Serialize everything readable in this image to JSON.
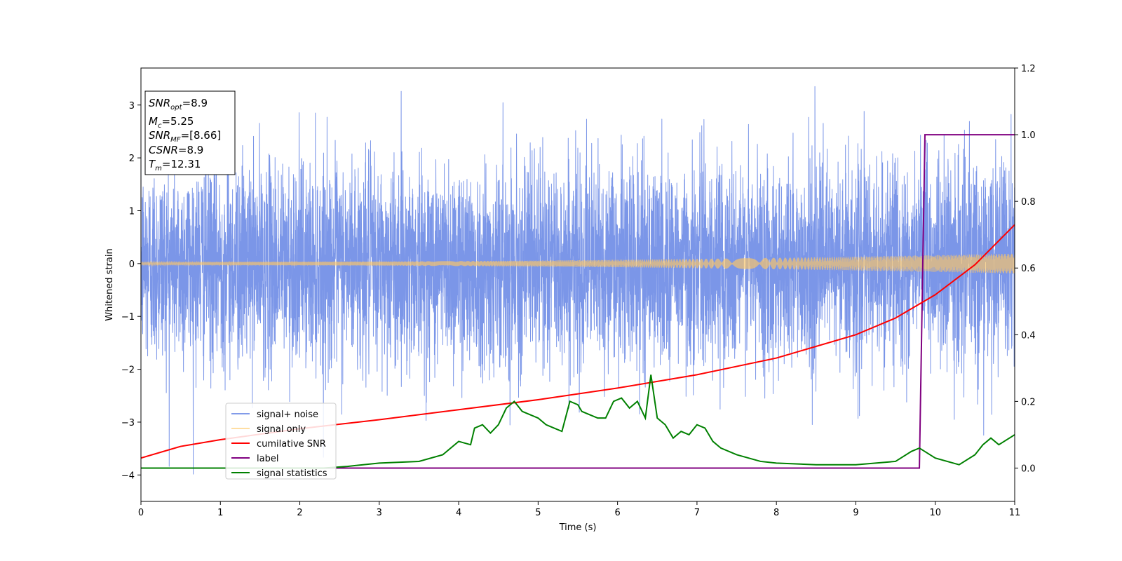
{
  "chart_data": {
    "type": "line",
    "xlabel": "Time (s)",
    "ylabel": "Whitened strain",
    "xlim": [
      0,
      11
    ],
    "ylim_left": [
      -4.5,
      3.7
    ],
    "ylim_right": [
      -0.1,
      1.2
    ],
    "x_ticks": [
      "0",
      "1",
      "2",
      "3",
      "4",
      "5",
      "6",
      "7",
      "8",
      "9",
      "10",
      "11"
    ],
    "y_left_ticks": [
      "−4",
      "−3",
      "−2",
      "−1",
      "0",
      "1",
      "2",
      "3"
    ],
    "y_left_tick_values": [
      -4,
      -3,
      -2,
      -1,
      0,
      1,
      2,
      3
    ],
    "y_right_ticks": [
      "0.0",
      "0.2",
      "0.4",
      "0.6",
      "0.8",
      "1.0",
      "1.2"
    ],
    "y_right_tick_values": [
      0.0,
      0.2,
      0.4,
      0.6,
      0.8,
      1.0,
      1.2
    ],
    "grid": false,
    "legend_position": "lower-left",
    "info_box": {
      "snr_opt_base": "SNR",
      "snr_opt_sub": "opt",
      "snr_opt_val": "=8.9",
      "mc_base": "M",
      "mc_sub": "c",
      "mc_val": "=5.25",
      "snr_mf_base": "SNR",
      "snr_mf_sub": "MF",
      "snr_mf_val": "=[8.66]",
      "csnr_base": "CSNR",
      "csnr_val": "=8.9",
      "tm_base": "T",
      "tm_sub": "m",
      "tm_val": "=12.31"
    },
    "series": [
      {
        "name": "signal+ noise",
        "color": "#7b96e8",
        "axis": "left",
        "kind": "noise",
        "amplitude_range": [
          -4.2,
          3.35
        ]
      },
      {
        "name": "signal only",
        "color": "#ffc864",
        "axis": "left",
        "kind": "chirp",
        "envelope_start": 0.03,
        "envelope_end": 0.19
      },
      {
        "name": "cumilative SNR",
        "color": "#ff0000",
        "axis": "right",
        "x": [
          0,
          0.5,
          1,
          2,
          3,
          4,
          5,
          6,
          7,
          8,
          9,
          9.5,
          10,
          10.5,
          11
        ],
        "y": [
          0.03,
          0.065,
          0.085,
          0.118,
          0.145,
          0.175,
          0.205,
          0.24,
          0.28,
          0.33,
          0.4,
          0.45,
          0.52,
          0.61,
          0.73
        ]
      },
      {
        "name": "label",
        "color": "#800080",
        "axis": "right",
        "x": [
          0,
          9.8,
          9.87,
          11
        ],
        "y": [
          0.0,
          0.0,
          1.0,
          1.0
        ]
      },
      {
        "name": "signal statistics",
        "color": "#008000",
        "axis": "right",
        "x": [
          0,
          2.3,
          2.6,
          3.0,
          3.5,
          3.8,
          4.0,
          4.15,
          4.2,
          4.3,
          4.4,
          4.5,
          4.6,
          4.7,
          4.8,
          4.9,
          5.0,
          5.1,
          5.2,
          5.3,
          5.4,
          5.5,
          5.55,
          5.65,
          5.75,
          5.85,
          5.95,
          6.05,
          6.15,
          6.25,
          6.35,
          6.42,
          6.5,
          6.6,
          6.7,
          6.8,
          6.9,
          7.0,
          7.1,
          7.2,
          7.3,
          7.5,
          7.8,
          8.0,
          8.5,
          9.0,
          9.5,
          9.7,
          9.8,
          10.0,
          10.3,
          10.5,
          10.6,
          10.7,
          10.8,
          11.0
        ],
        "y": [
          0.0,
          0.0,
          0.005,
          0.015,
          0.02,
          0.04,
          0.08,
          0.07,
          0.12,
          0.13,
          0.105,
          0.13,
          0.18,
          0.2,
          0.17,
          0.16,
          0.15,
          0.13,
          0.12,
          0.11,
          0.2,
          0.19,
          0.17,
          0.16,
          0.15,
          0.15,
          0.2,
          0.21,
          0.18,
          0.2,
          0.15,
          0.28,
          0.15,
          0.13,
          0.09,
          0.11,
          0.1,
          0.13,
          0.12,
          0.08,
          0.06,
          0.04,
          0.02,
          0.015,
          0.01,
          0.01,
          0.02,
          0.05,
          0.06,
          0.03,
          0.01,
          0.04,
          0.07,
          0.09,
          0.07,
          0.1
        ]
      }
    ]
  }
}
